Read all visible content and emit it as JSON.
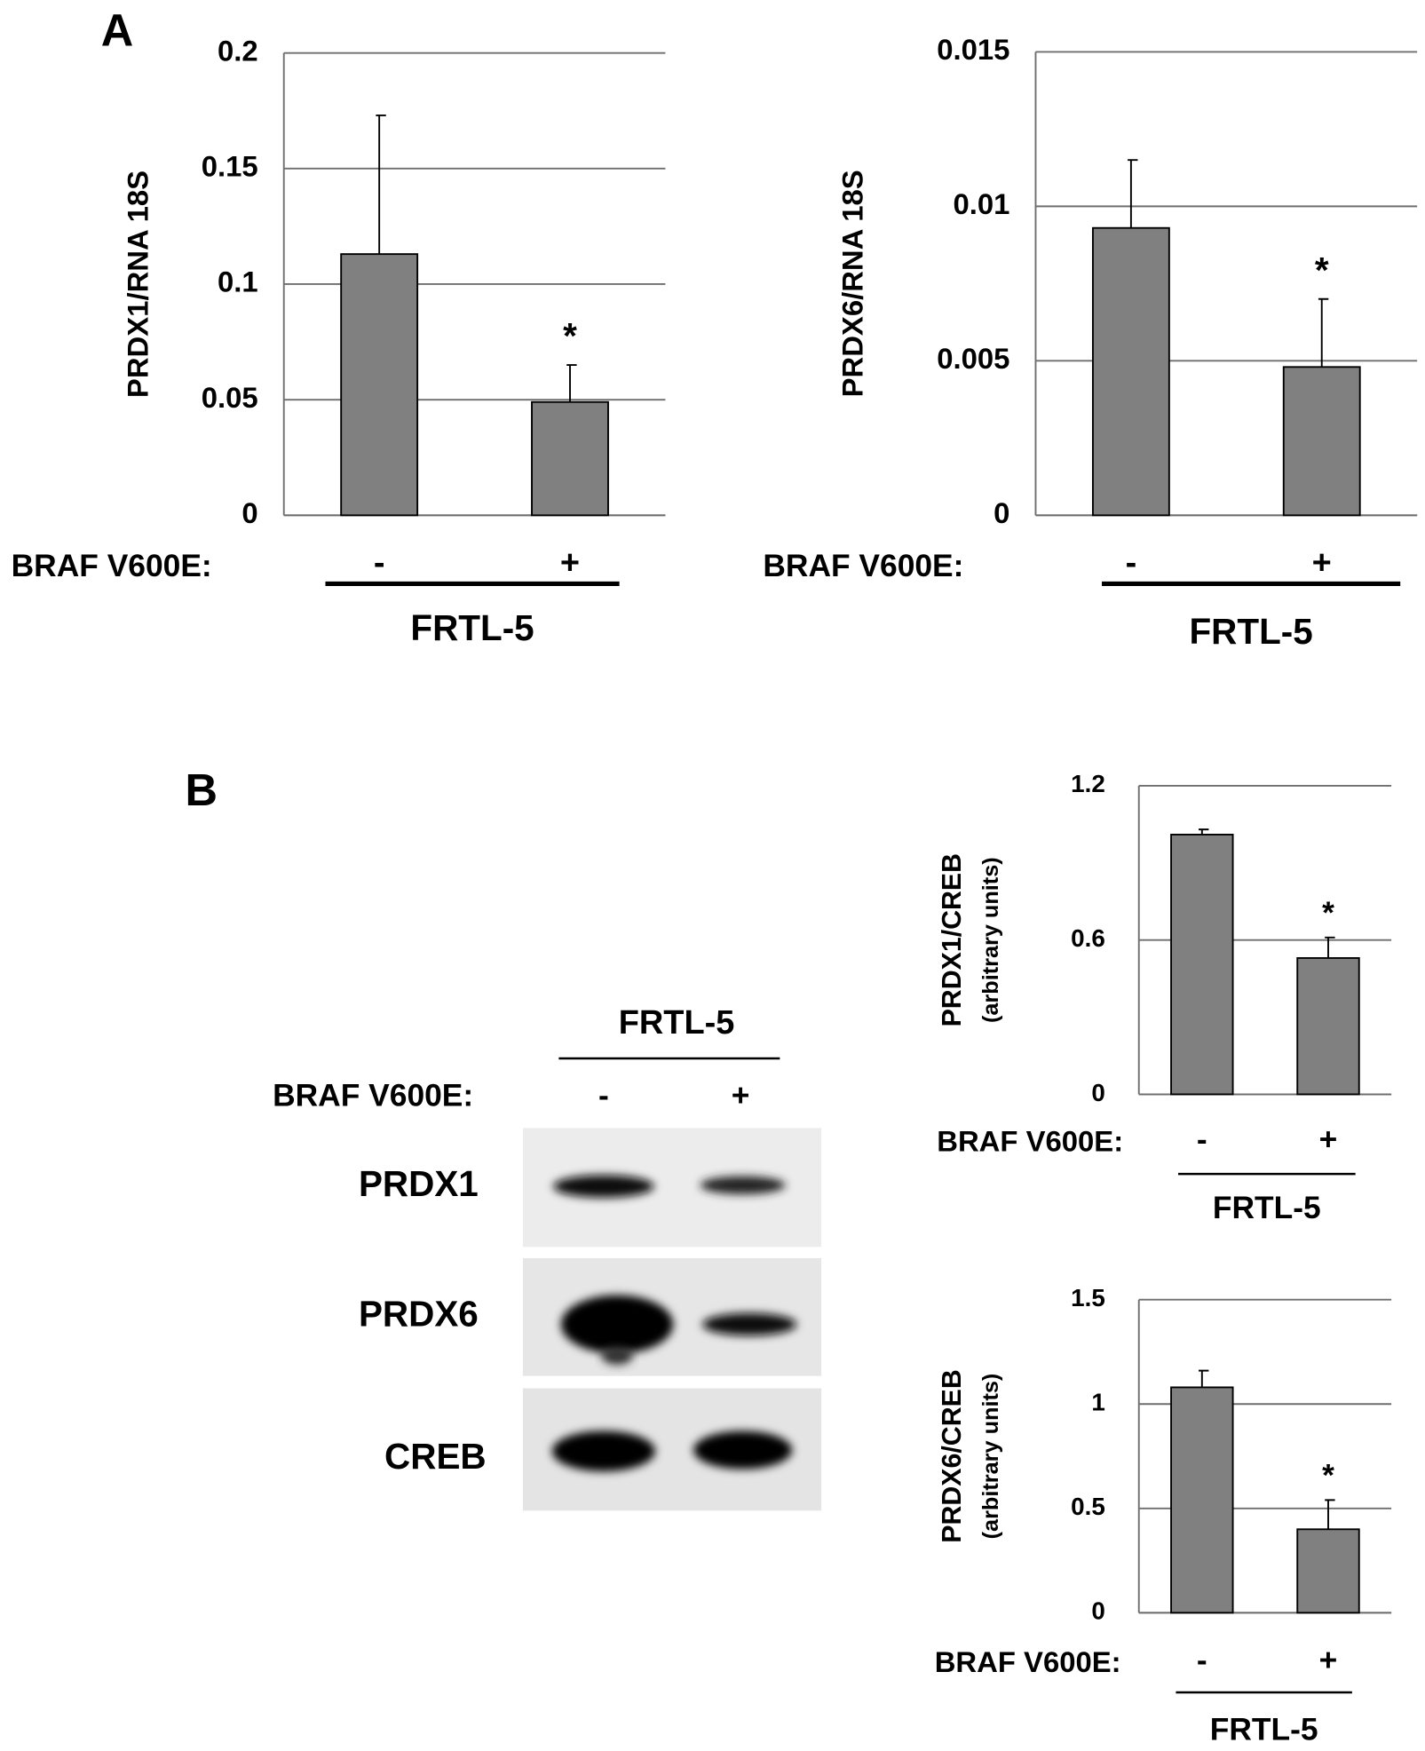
{
  "panels": {
    "a": "A",
    "b": "B"
  },
  "blot": {
    "title": "FRTL-5",
    "category_title": "BRAF V600E:",
    "categories": [
      "-",
      "+"
    ],
    "rows": [
      "PRDX1",
      "PRDX6",
      "CREB"
    ]
  },
  "chart_data": [
    {
      "type": "bar",
      "y_label": "PRDX1/RNA 18S",
      "categories": [
        "-",
        "+"
      ],
      "category_title": "BRAF V600E:",
      "group_label": "FRTL-5",
      "values": [
        0.113,
        0.049
      ],
      "errors": [
        0.06,
        0.016
      ],
      "annotations": [
        null,
        "*"
      ],
      "color": "#808080",
      "ylim": [
        0,
        0.2
      ],
      "yticks": [
        0,
        0.05,
        0.1,
        0.15,
        0.2
      ],
      "grid": true
    },
    {
      "type": "bar",
      "y_label": "PRDX6/RNA 18S",
      "categories": [
        "-",
        "+"
      ],
      "category_title": "BRAF V600E:",
      "group_label": "FRTL-5",
      "values": [
        0.0093,
        0.0048
      ],
      "errors": [
        0.0022,
        0.0022
      ],
      "annotations": [
        null,
        "*"
      ],
      "color": "#808080",
      "ylim": [
        0,
        0.015
      ],
      "yticks": [
        0,
        0.005,
        0.01,
        0.015
      ],
      "grid": true
    },
    {
      "type": "bar",
      "y_label": "PRDX1/CREB",
      "y_sublabel": "(arbitrary units)",
      "categories": [
        "-",
        "+"
      ],
      "category_title": "BRAF V600E:",
      "group_label": "FRTL-5",
      "values": [
        1.01,
        0.53
      ],
      "errors": [
        0.02,
        0.08
      ],
      "annotations": [
        null,
        "*"
      ],
      "color": "#808080",
      "ylim": [
        0,
        1.2
      ],
      "yticks": [
        0,
        0.6,
        1.2
      ],
      "grid": true
    },
    {
      "type": "bar",
      "y_label": "PRDX6/CREB",
      "y_sublabel": "(arbitrary units)",
      "categories": [
        "-",
        "+"
      ],
      "category_title": "BRAF V600E:",
      "group_label": "FRTL-5",
      "values": [
        1.08,
        0.4
      ],
      "errors": [
        0.08,
        0.14
      ],
      "annotations": [
        null,
        "*"
      ],
      "color": "#808080",
      "ylim": [
        0,
        1.5
      ],
      "yticks": [
        0,
        0.5,
        1,
        1.5
      ],
      "grid": true
    }
  ]
}
